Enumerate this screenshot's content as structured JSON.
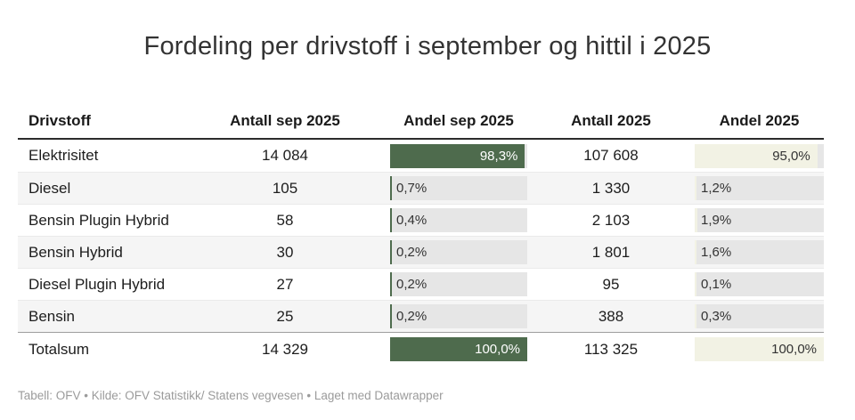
{
  "title": "Fordeling per drivstoff i september og hittil i 2025",
  "footer": "Tabell: OFV • Kilde: OFV Statistikk/ Statens vegvesen • Laget med Datawrapper",
  "colors": {
    "bar_sep": "#4e6b4d",
    "bar_year": "#f2f2e4",
    "track": "#e6e6e6",
    "stripe": "#f5f5f5",
    "header_rule": "#2b2b2b",
    "total_rule": "#9e9e9e",
    "label_on_green": "#ffffff",
    "label_dark": "#333333"
  },
  "chart_data": {
    "type": "table",
    "title": "Fordeling per drivstoff i september og hittil i 2025",
    "footer": "Tabell: OFV • Kilde: OFV Statistikk/ Statens vegvesen • Laget med Datawrapper",
    "columns": [
      {
        "key": "drivstoff",
        "label": "Drivstoff",
        "kind": "text"
      },
      {
        "key": "antall_sep",
        "label": "Antall sep 2025",
        "kind": "number"
      },
      {
        "key": "andel_sep",
        "label": "Andel sep 2025",
        "kind": "bar",
        "bar_color": "#4e6b4d",
        "inside_label_color": "#ffffff"
      },
      {
        "key": "antall",
        "label": "Antall 2025",
        "kind": "number"
      },
      {
        "key": "andel",
        "label": "Andel 2025",
        "kind": "bar",
        "bar_color": "#f2f2e4",
        "inside_label_color": "#333333"
      }
    ],
    "rows": [
      {
        "drivstoff": "Elektrisitet",
        "antall_sep": "14 084",
        "andel_sep": {
          "label": "98,3%",
          "pct": 98.3
        },
        "antall": "107 608",
        "andel": {
          "label": "95,0%",
          "pct": 95.0
        },
        "total": false
      },
      {
        "drivstoff": "Diesel",
        "antall_sep": "105",
        "andel_sep": {
          "label": "0,7%",
          "pct": 0.7
        },
        "antall": "1 330",
        "andel": {
          "label": "1,2%",
          "pct": 1.2
        },
        "total": false
      },
      {
        "drivstoff": "Bensin Plugin Hybrid",
        "antall_sep": "58",
        "andel_sep": {
          "label": "0,4%",
          "pct": 0.4
        },
        "antall": "2 103",
        "andel": {
          "label": "1,9%",
          "pct": 1.9
        },
        "total": false
      },
      {
        "drivstoff": "Bensin Hybrid",
        "antall_sep": "30",
        "andel_sep": {
          "label": "0,2%",
          "pct": 0.2
        },
        "antall": "1 801",
        "andel": {
          "label": "1,6%",
          "pct": 1.6
        },
        "total": false
      },
      {
        "drivstoff": "Diesel Plugin Hybrid",
        "antall_sep": "27",
        "andel_sep": {
          "label": "0,2%",
          "pct": 0.2
        },
        "antall": "95",
        "andel": {
          "label": "0,1%",
          "pct": 0.1
        },
        "total": false
      },
      {
        "drivstoff": "Bensin",
        "antall_sep": "25",
        "andel_sep": {
          "label": "0,2%",
          "pct": 0.2
        },
        "antall": "388",
        "andel": {
          "label": "0,3%",
          "pct": 0.3
        },
        "total": false
      },
      {
        "drivstoff": "Totalsum",
        "antall_sep": "14 329",
        "andel_sep": {
          "label": "100,0%",
          "pct": 100
        },
        "antall": "113 325",
        "andel": {
          "label": "100,0%",
          "pct": 100
        },
        "total": true
      }
    ]
  }
}
